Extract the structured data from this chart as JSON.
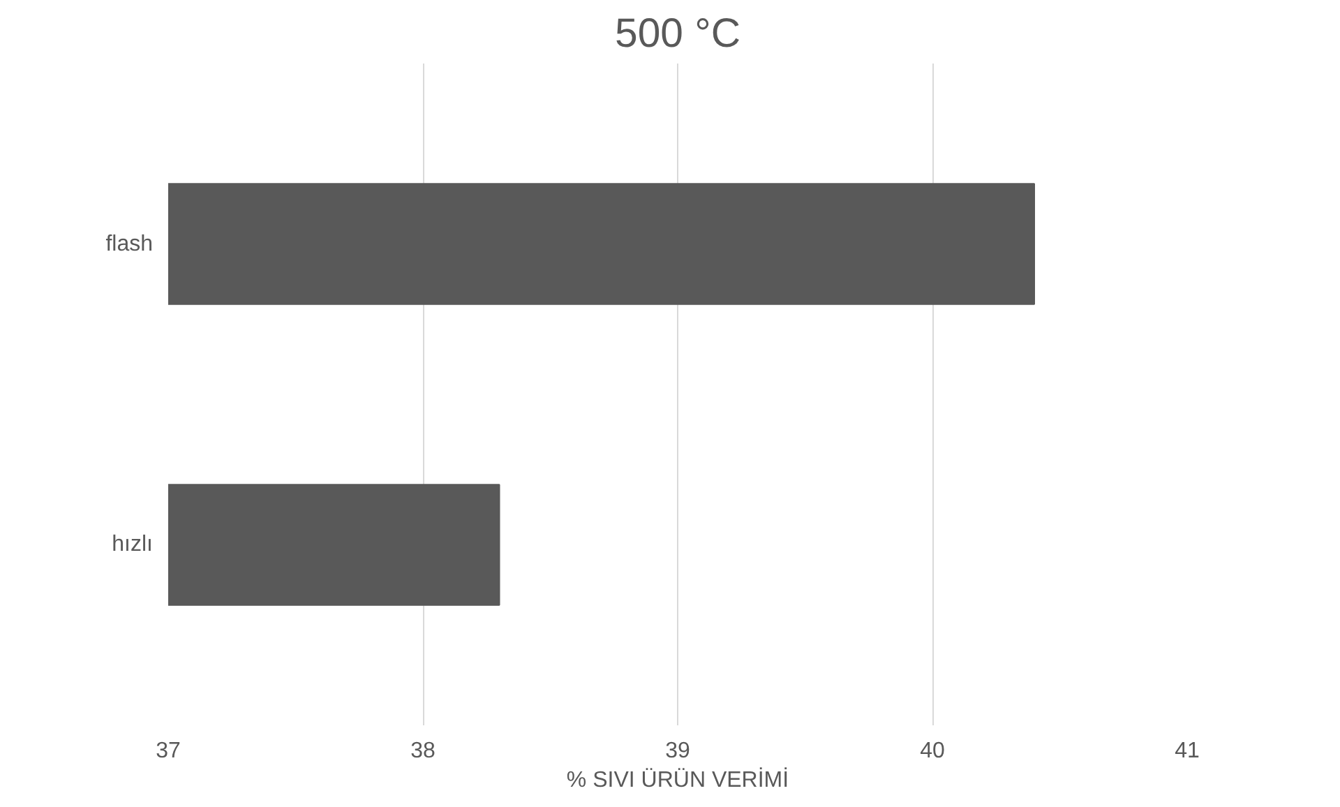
{
  "chart_data": {
    "type": "bar",
    "orientation": "horizontal",
    "title": "500 °C",
    "xlabel": "% SIVI ÜRÜN VERİMİ",
    "categories": [
      "flash",
      "hızlı"
    ],
    "values": [
      40.4,
      38.3
    ],
    "color": "#595959",
    "xlim": [
      37,
      41
    ],
    "xticks": [
      37,
      38,
      39,
      40,
      41
    ],
    "grid": "x"
  }
}
